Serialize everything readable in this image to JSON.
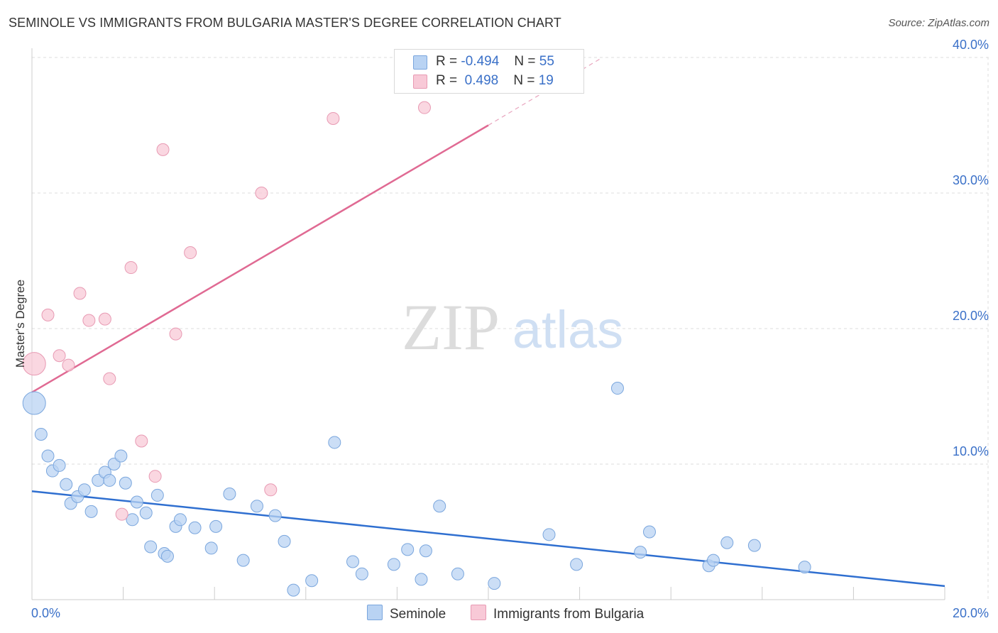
{
  "title": "SEMINOLE VS IMMIGRANTS FROM BULGARIA MASTER'S DEGREE CORRELATION CHART",
  "source": "Source: ZipAtlas.com",
  "watermark": {
    "zip": "ZIP",
    "atlas": "atlas"
  },
  "legend": {
    "rows": [
      {
        "r_label": "R =",
        "r_value": "-0.494",
        "n_label": "N =",
        "n_value": "55"
      },
      {
        "r_label": "R =",
        "r_value": " 0.498",
        "n_label": "N =",
        "n_value": "19"
      }
    ]
  },
  "colors": {
    "seminole_fill": "#b9d3f3",
    "seminole_stroke": "#7aa6dd",
    "seminole_line": "#2f6fd0",
    "bulgaria_fill": "#f8c9d7",
    "bulgaria_stroke": "#e89ab3",
    "bulgaria_line": "#e06a93",
    "axis_text": "#3a70c8",
    "grid": "#dddddd"
  },
  "chart_data": {
    "type": "scatter",
    "title": "SEMINOLE VS IMMIGRANTS FROM BULGARIA MASTER'S DEGREE CORRELATION CHART",
    "xlabel": "",
    "ylabel": "Master's Degree",
    "xlim": [
      0,
      20
    ],
    "ylim": [
      0,
      40
    ],
    "x_tick_labels": [
      "0.0%",
      "20.0%"
    ],
    "y_ticks": [
      10,
      20,
      30,
      40
    ],
    "y_tick_labels": [
      "10.0%",
      "20.0%",
      "30.0%",
      "40.0%"
    ],
    "grid": true,
    "series": [
      {
        "name": "Seminole",
        "trend": {
          "x": [
            0,
            20
          ],
          "y": [
            8.0,
            1.0
          ]
        },
        "points": [
          {
            "x": 0.05,
            "y": 14.5,
            "big": true
          },
          {
            "x": 0.2,
            "y": 12.2
          },
          {
            "x": 0.35,
            "y": 10.6
          },
          {
            "x": 0.45,
            "y": 9.5
          },
          {
            "x": 0.6,
            "y": 9.9
          },
          {
            "x": 0.75,
            "y": 8.5
          },
          {
            "x": 0.85,
            "y": 7.1
          },
          {
            "x": 1.0,
            "y": 7.6
          },
          {
            "x": 1.15,
            "y": 8.1
          },
          {
            "x": 1.3,
            "y": 6.5
          },
          {
            "x": 1.45,
            "y": 8.8
          },
          {
            "x": 1.6,
            "y": 9.4
          },
          {
            "x": 1.7,
            "y": 8.8
          },
          {
            "x": 1.8,
            "y": 10.0
          },
          {
            "x": 1.95,
            "y": 10.6
          },
          {
            "x": 2.05,
            "y": 8.6
          },
          {
            "x": 2.2,
            "y": 5.9
          },
          {
            "x": 2.3,
            "y": 7.2
          },
          {
            "x": 2.5,
            "y": 6.4
          },
          {
            "x": 2.6,
            "y": 3.9
          },
          {
            "x": 2.75,
            "y": 7.7
          },
          {
            "x": 2.9,
            "y": 3.4
          },
          {
            "x": 2.97,
            "y": 3.2
          },
          {
            "x": 3.15,
            "y": 5.4
          },
          {
            "x": 3.25,
            "y": 5.9
          },
          {
            "x": 3.57,
            "y": 5.3
          },
          {
            "x": 3.93,
            "y": 3.8
          },
          {
            "x": 4.03,
            "y": 5.4
          },
          {
            "x": 4.33,
            "y": 7.8
          },
          {
            "x": 4.63,
            "y": 2.9
          },
          {
            "x": 4.93,
            "y": 6.9
          },
          {
            "x": 5.33,
            "y": 6.2
          },
          {
            "x": 5.53,
            "y": 4.3
          },
          {
            "x": 5.73,
            "y": 0.7
          },
          {
            "x": 6.13,
            "y": 1.4
          },
          {
            "x": 6.63,
            "y": 11.6
          },
          {
            "x": 7.03,
            "y": 2.8
          },
          {
            "x": 7.23,
            "y": 1.9
          },
          {
            "x": 7.93,
            "y": 2.6
          },
          {
            "x": 8.23,
            "y": 3.7
          },
          {
            "x": 8.53,
            "y": 1.5
          },
          {
            "x": 8.63,
            "y": 3.6
          },
          {
            "x": 8.93,
            "y": 6.9
          },
          {
            "x": 9.33,
            "y": 1.9
          },
          {
            "x": 10.13,
            "y": 1.2
          },
          {
            "x": 11.33,
            "y": 4.8
          },
          {
            "x": 11.93,
            "y": 2.6
          },
          {
            "x": 12.83,
            "y": 15.6
          },
          {
            "x": 13.33,
            "y": 3.5
          },
          {
            "x": 13.53,
            "y": 5.0
          },
          {
            "x": 14.83,
            "y": 2.5
          },
          {
            "x": 14.93,
            "y": 2.9
          },
          {
            "x": 15.23,
            "y": 4.2
          },
          {
            "x": 15.83,
            "y": 4.0
          },
          {
            "x": 16.93,
            "y": 2.4
          }
        ]
      },
      {
        "name": "Immigrants from Bulgaria",
        "trend": {
          "x": [
            0,
            10
          ],
          "y": [
            15.3,
            35.0
          ]
        },
        "trend_dashed_to": {
          "x": 12.5,
          "y": 40.0
        },
        "points": [
          {
            "x": 0.05,
            "y": 17.4,
            "big": true
          },
          {
            "x": 0.35,
            "y": 21.0
          },
          {
            "x": 0.6,
            "y": 18.0
          },
          {
            "x": 0.8,
            "y": 17.3
          },
          {
            "x": 1.05,
            "y": 22.6
          },
          {
            "x": 1.25,
            "y": 20.6
          },
          {
            "x": 1.6,
            "y": 20.7
          },
          {
            "x": 1.7,
            "y": 16.3
          },
          {
            "x": 1.97,
            "y": 6.3
          },
          {
            "x": 2.17,
            "y": 24.5
          },
          {
            "x": 2.4,
            "y": 11.7
          },
          {
            "x": 2.7,
            "y": 9.1
          },
          {
            "x": 2.87,
            "y": 33.2
          },
          {
            "x": 3.15,
            "y": 19.6
          },
          {
            "x": 3.47,
            "y": 25.6
          },
          {
            "x": 5.03,
            "y": 30.0
          },
          {
            "x": 5.23,
            "y": 8.1
          },
          {
            "x": 6.6,
            "y": 35.5
          },
          {
            "x": 8.6,
            "y": 36.3
          }
        ]
      }
    ]
  },
  "bottom_legend": [
    {
      "label": "Seminole"
    },
    {
      "label": "Immigrants from Bulgaria"
    }
  ]
}
